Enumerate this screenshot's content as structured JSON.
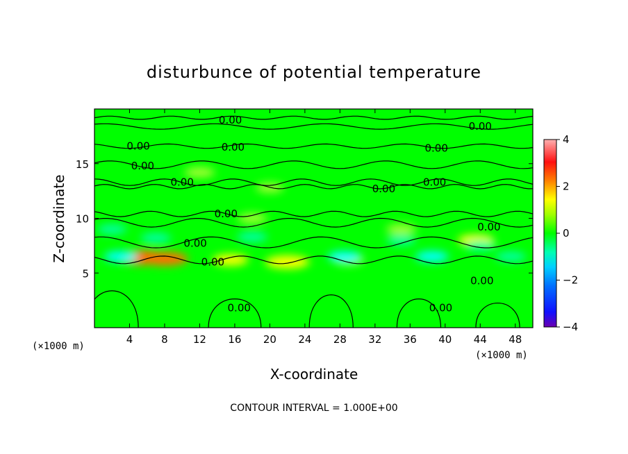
{
  "chart_data": {
    "type": "heatmap",
    "title": "disturbunce of potential temperature",
    "xlabel": "X-coordinate",
    "ylabel": "Z-coordinate",
    "x_unit": "(×1000 m)",
    "y_unit": "(×1000 m)",
    "xlim": [
      0,
      50
    ],
    "ylim": [
      0,
      20
    ],
    "x_ticks": [
      4,
      8,
      12,
      16,
      20,
      24,
      28,
      32,
      36,
      40,
      44,
      48
    ],
    "y_ticks": [
      5,
      10,
      15
    ],
    "colorbar": {
      "ticks": [
        4,
        2,
        0,
        -2,
        -4
      ],
      "range": [
        -4,
        4
      ]
    },
    "contour_interval_text": "CONTOUR INTERVAL = 1.000E+00",
    "contour_labels": [
      {
        "text": "0.00",
        "x": 15.5,
        "z": 19.0
      },
      {
        "text": "0.00",
        "x": 44.0,
        "z": 18.4
      },
      {
        "text": "0.00",
        "x": 5.0,
        "z": 16.6
      },
      {
        "text": "0.00",
        "x": 15.8,
        "z": 16.5
      },
      {
        "text": "0.00",
        "x": 39.0,
        "z": 16.4
      },
      {
        "text": "0.00",
        "x": 5.5,
        "z": 14.8
      },
      {
        "text": "0.00",
        "x": 10.0,
        "z": 13.3
      },
      {
        "text": "0.00",
        "x": 33.0,
        "z": 12.7
      },
      {
        "text": "0.00",
        "x": 38.8,
        "z": 13.3
      },
      {
        "text": "0.00",
        "x": 15.0,
        "z": 10.4
      },
      {
        "text": "0.00",
        "x": 11.5,
        "z": 7.7
      },
      {
        "text": "0.00",
        "x": 13.5,
        "z": 6.0
      },
      {
        "text": "0.00",
        "x": 45.0,
        "z": 9.2
      },
      {
        "text": "0.00",
        "x": 44.2,
        "z": 4.3
      },
      {
        "text": "0.00",
        "x": 16.5,
        "z": 1.8
      },
      {
        "text": "0.00",
        "x": 39.5,
        "z": 1.8
      }
    ],
    "features": [
      {
        "kind": "warm",
        "x": 12.0,
        "z": 14.2,
        "value": 0.8
      },
      {
        "kind": "warm",
        "x": 20.0,
        "z": 12.8,
        "value": 0.6
      },
      {
        "kind": "warm",
        "x": 18.0,
        "z": 10.0,
        "value": 0.7
      },
      {
        "kind": "warm",
        "x": 35.0,
        "z": 9.0,
        "value": 0.8
      },
      {
        "kind": "warm",
        "x": 43.5,
        "z": 8.0,
        "value": 1.2
      },
      {
        "kind": "warm",
        "x": 8.0,
        "z": 6.3,
        "value": 2.0
      },
      {
        "kind": "warm",
        "x": 5.5,
        "z": 6.4,
        "value": 2.2
      },
      {
        "kind": "warm",
        "x": 22.0,
        "z": 6.0,
        "value": 1.8
      },
      {
        "kind": "warm",
        "x": 15.5,
        "z": 6.2,
        "value": 1.2
      },
      {
        "kind": "warm",
        "x": 29.0,
        "z": 6.2,
        "value": 0.8
      },
      {
        "kind": "cool",
        "x": 3.0,
        "z": 6.5,
        "value": -1.0
      },
      {
        "kind": "cool",
        "x": 28.5,
        "z": 6.5,
        "value": -1.0
      },
      {
        "kind": "cool",
        "x": 38.5,
        "z": 6.5,
        "value": -1.0
      },
      {
        "kind": "cool",
        "x": 47.5,
        "z": 6.5,
        "value": -0.8
      },
      {
        "kind": "cool",
        "x": 7.0,
        "z": 8.2,
        "value": -0.8
      },
      {
        "kind": "cool",
        "x": 35.0,
        "z": 8.0,
        "value": -0.7
      },
      {
        "kind": "cool",
        "x": 44.0,
        "z": 7.5,
        "value": -0.8
      },
      {
        "kind": "cool",
        "x": 2.0,
        "z": 9.0,
        "value": -0.7
      },
      {
        "kind": "cool",
        "x": 18.0,
        "z": 8.3,
        "value": -0.8
      }
    ]
  },
  "colors": {
    "background": "#00ff00",
    "warm_light": "#a0ff30",
    "warm": "#ffff00",
    "hot": "#ff7000",
    "cool_light": "#00ffa0",
    "cool": "#00ffff"
  }
}
